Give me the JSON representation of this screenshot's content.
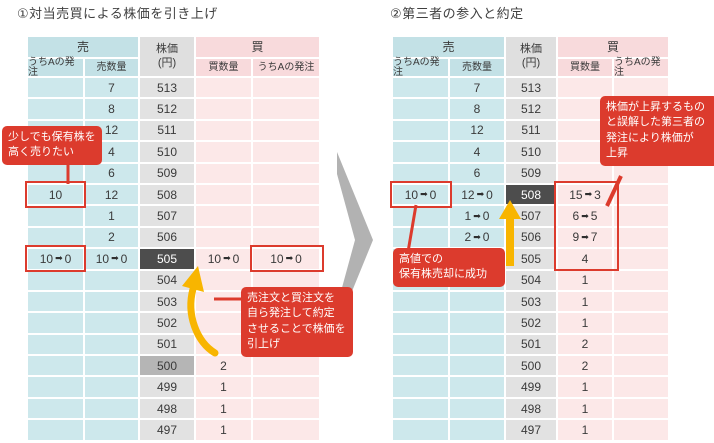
{
  "panels": [
    {
      "title": "①対当売買による株価を引き上げ",
      "headers": {
        "sell": "売",
        "price": "株価\n(円)",
        "buy": "買",
        "cols": [
          "うちAの発注",
          "売数量",
          "買数量",
          "うちAの発注"
        ]
      },
      "rows": [
        {
          "price": "513",
          "cells": [
            "",
            "7",
            "",
            ""
          ]
        },
        {
          "price": "512",
          "cells": [
            "",
            "8",
            "",
            ""
          ]
        },
        {
          "price": "511",
          "cells": [
            "",
            "12",
            "",
            ""
          ]
        },
        {
          "price": "510",
          "cells": [
            "",
            "4",
            "",
            ""
          ]
        },
        {
          "price": "509",
          "cells": [
            "",
            "6",
            "",
            ""
          ]
        },
        {
          "price": "508",
          "cells": [
            "10",
            "12",
            "",
            ""
          ]
        },
        {
          "price": "507",
          "cells": [
            "",
            "1",
            "",
            ""
          ]
        },
        {
          "price": "506",
          "cells": [
            "",
            "2",
            "",
            ""
          ]
        },
        {
          "price": "505",
          "highlight": "dark",
          "cells": [
            "10→0",
            "10→0",
            "10→0",
            "10→0"
          ]
        },
        {
          "price": "504",
          "cells": [
            "",
            "",
            "",
            ""
          ]
        },
        {
          "price": "503",
          "cells": [
            "",
            "",
            "",
            ""
          ]
        },
        {
          "price": "502",
          "cells": [
            "",
            "",
            "",
            ""
          ]
        },
        {
          "price": "501",
          "cells": [
            "",
            "",
            "",
            ""
          ]
        },
        {
          "price": "500",
          "highlight": "mid",
          "cells": [
            "",
            "",
            "2",
            ""
          ]
        },
        {
          "price": "499",
          "cells": [
            "",
            "",
            "1",
            ""
          ]
        },
        {
          "price": "498",
          "cells": [
            "",
            "",
            "1",
            ""
          ]
        },
        {
          "price": "497",
          "cells": [
            "",
            "",
            "1",
            ""
          ]
        }
      ]
    },
    {
      "title": "②第三者の参入と約定",
      "headers": {
        "sell": "売",
        "price": "株価\n(円)",
        "buy": "買",
        "cols": [
          "うちAの発注",
          "売数量",
          "買数量",
          "うちAの発注"
        ]
      },
      "rows": [
        {
          "price": "513",
          "cells": [
            "",
            "7",
            "",
            ""
          ]
        },
        {
          "price": "512",
          "cells": [
            "",
            "8",
            "",
            ""
          ]
        },
        {
          "price": "511",
          "cells": [
            "",
            "12",
            "",
            ""
          ]
        },
        {
          "price": "510",
          "cells": [
            "",
            "4",
            "",
            ""
          ]
        },
        {
          "price": "509",
          "cells": [
            "",
            "6",
            "",
            ""
          ]
        },
        {
          "price": "508",
          "highlight": "dark",
          "cells": [
            "10→0",
            "12→0",
            "15→3",
            ""
          ]
        },
        {
          "price": "507",
          "cells": [
            "",
            "1→0",
            "6→5",
            ""
          ]
        },
        {
          "price": "506",
          "cells": [
            "",
            "2→0",
            "9→7",
            ""
          ]
        },
        {
          "price": "505",
          "cells": [
            "",
            "",
            "4",
            ""
          ]
        },
        {
          "price": "504",
          "cells": [
            "",
            "",
            "1",
            ""
          ]
        },
        {
          "price": "503",
          "cells": [
            "",
            "",
            "1",
            ""
          ]
        },
        {
          "price": "502",
          "cells": [
            "",
            "",
            "1",
            ""
          ]
        },
        {
          "price": "501",
          "cells": [
            "",
            "",
            "2",
            ""
          ]
        },
        {
          "price": "500",
          "cells": [
            "",
            "",
            "2",
            ""
          ]
        },
        {
          "price": "499",
          "cells": [
            "",
            "",
            "1",
            ""
          ]
        },
        {
          "price": "498",
          "cells": [
            "",
            "",
            "1",
            ""
          ]
        },
        {
          "price": "497",
          "cells": [
            "",
            "",
            "1",
            ""
          ]
        }
      ]
    }
  ],
  "annotations": {
    "bubble1": "少しでも保有株を\n高く売りたい",
    "bubble2": "売注文と買注文を\n自ら発注して約定\nさせることで株価を\n引上げ",
    "bubble3": "高値での\n保有株売却に成功",
    "bubble4": "株価が上昇するもの\nと誤解した第三者の\n発注により株価が\n上昇"
  },
  "colors": {
    "accent_red": "#dc3b2d",
    "arrow_yellow": "#f8b500",
    "highlight_dark": "#4d4d4d",
    "highlight_mid": "#b5b5b5",
    "sell_teal": "#cde8ec",
    "buy_pink": "#fce8e8",
    "price_gray": "#e2e2e2",
    "transition_gray": "#b2b2b2"
  }
}
